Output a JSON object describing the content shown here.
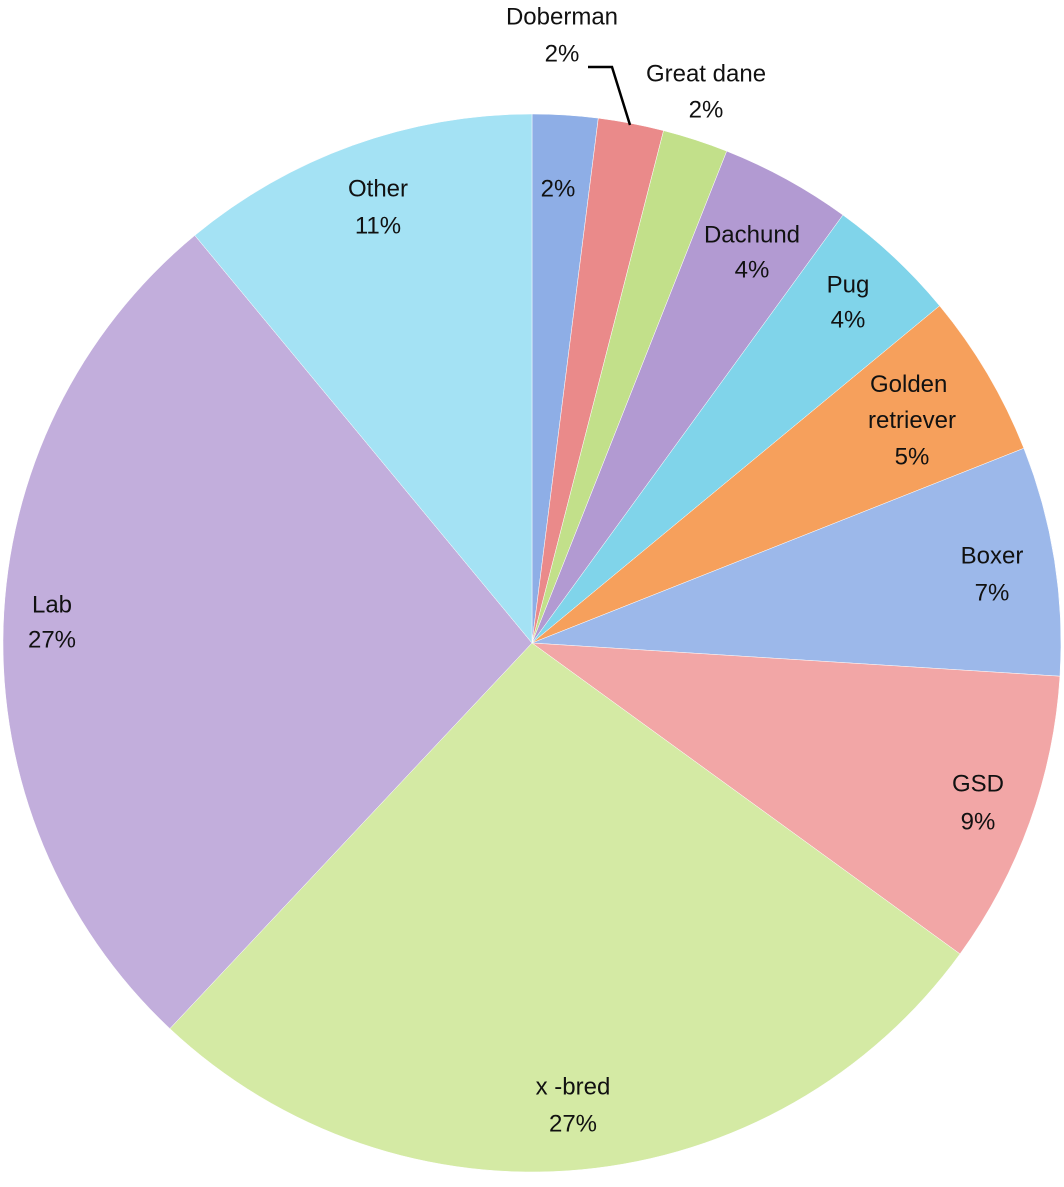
{
  "chart_data": {
    "type": "pie",
    "categories": [
      null,
      "Doberman",
      "Great dane",
      "Dachund",
      "Pug",
      "Golden retriever",
      "Boxer",
      "GSD",
      "x -bred",
      "Lab",
      "Other"
    ],
    "values": [
      2,
      2,
      2,
      4,
      4,
      5,
      7,
      9,
      27,
      27,
      11
    ],
    "value_labels": [
      "2%",
      "2%",
      "2%",
      "4%",
      "4%",
      "5%",
      "7%",
      "9%",
      "27%",
      "27%",
      "11%"
    ],
    "colors": [
      "#8eaee6",
      "#ea8a8a",
      "#c2e08a",
      "#b29ad2",
      "#80d4ea",
      "#f6a05c",
      "#9cb8ea",
      "#f2a6a6",
      "#d4eaa4",
      "#c2aedc",
      "#a4e2f4"
    ]
  }
}
